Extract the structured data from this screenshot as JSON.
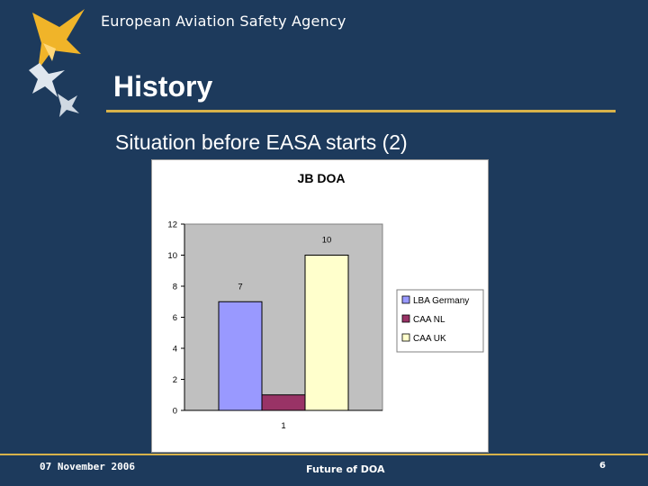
{
  "header": {
    "agency_name": "European Aviation Safety Agency"
  },
  "slide": {
    "title": "History",
    "subtitle": "Situation before EASA starts (2)"
  },
  "footer": {
    "date": "07 November 2006",
    "center_text": "Future of DOA",
    "page_number": "6"
  },
  "colors": {
    "background": "#1d3a5c",
    "rule": "#d8b24a",
    "plot_area": "#c0c0c0",
    "series_lba": "#9999ff",
    "series_caa_nl": "#993366",
    "series_caa_uk": "#ffffcc"
  },
  "chart_data": {
    "type": "bar",
    "title": "JB DOA",
    "categories": [
      "1"
    ],
    "series": [
      {
        "name": "LBA Germany",
        "values": [
          7
        ],
        "color": "#9999ff",
        "label": "7"
      },
      {
        "name": "CAA NL",
        "values": [
          1
        ],
        "color": "#993366",
        "label": ""
      },
      {
        "name": "CAA UK",
        "values": [
          10
        ],
        "color": "#ffffcc",
        "label": "10"
      }
    ],
    "xlabel": "",
    "ylabel": "",
    "ylim": [
      0,
      12
    ],
    "yticks": [
      "0",
      "2",
      "4",
      "6",
      "8",
      "10",
      "12"
    ],
    "grid": false,
    "legend": "right"
  }
}
